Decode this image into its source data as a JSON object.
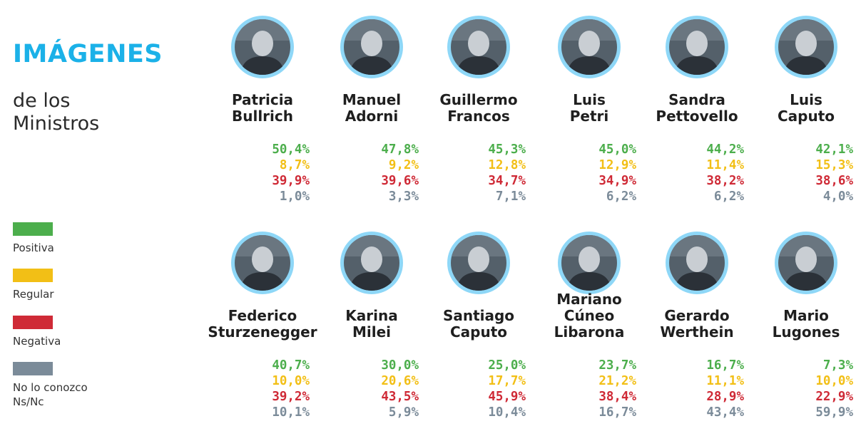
{
  "title": "IMÁGENES",
  "subtitle": "de los Ministros",
  "colors": {
    "title": "#1bb1e8",
    "ring": "#8ed7f7",
    "Positiva": "#4cae4c",
    "Regular": "#f2bf16",
    "Negativa": "#cf2a36",
    "No lo conozco Ns/Nc": "#7b8b99"
  },
  "legend": [
    {
      "label": "Positiva",
      "color": "#4cae4c"
    },
    {
      "label": "Regular",
      "color": "#f2bf16"
    },
    {
      "label": "Negativa",
      "color": "#cf2a36"
    },
    {
      "label": "No lo conozco\nNs/Nc",
      "color": "#7b8b99"
    }
  ],
  "chart_data": {
    "type": "table",
    "title": "IMÁGENES",
    "subtitle": "de los Ministros",
    "unit": "%",
    "series": [
      "Positiva",
      "Regular",
      "Negativa",
      "No lo conozco Ns/Nc"
    ],
    "rows": [
      {
        "name": "Patricia\nBullrich",
        "values": [
          "50,4%",
          "8,7%",
          "39,9%",
          "1,0%"
        ]
      },
      {
        "name": "Manuel\nAdorni",
        "values": [
          "47,8%",
          "9,2%",
          "39,6%",
          "3,3%"
        ]
      },
      {
        "name": "Guillermo\nFrancos",
        "values": [
          "45,3%",
          "12,8%",
          "34,7%",
          "7,1%"
        ]
      },
      {
        "name": "Luis\nPetri",
        "values": [
          "45,0%",
          "12,9%",
          "34,9%",
          "6,2%"
        ]
      },
      {
        "name": "Sandra\nPettovello",
        "values": [
          "44,2%",
          "11,4%",
          "38,2%",
          "6,2%"
        ]
      },
      {
        "name": "Luis\nCaputo",
        "values": [
          "42,1%",
          "15,3%",
          "38,6%",
          "4,0%"
        ]
      },
      {
        "name": "Federico\nSturzenegger",
        "values": [
          "40,7%",
          "10,0%",
          "39,2%",
          "10,1%"
        ]
      },
      {
        "name": "Karina\nMilei",
        "values": [
          "30,0%",
          "20,6%",
          "43,5%",
          "5,9%"
        ]
      },
      {
        "name": "Santiago\nCaputo",
        "values": [
          "25,0%",
          "17,7%",
          "45,9%",
          "10,4%"
        ]
      },
      {
        "name": "Mariano\nCúneo\nLibarona",
        "values": [
          "23,7%",
          "21,2%",
          "38,4%",
          "16,7%"
        ]
      },
      {
        "name": "Gerardo\nWerthein",
        "values": [
          "16,7%",
          "11,1%",
          "28,9%",
          "43,4%"
        ]
      },
      {
        "name": "Mario\nLugones",
        "values": [
          "7,3%",
          "10,0%",
          "22,9%",
          "59,9%"
        ]
      }
    ]
  }
}
